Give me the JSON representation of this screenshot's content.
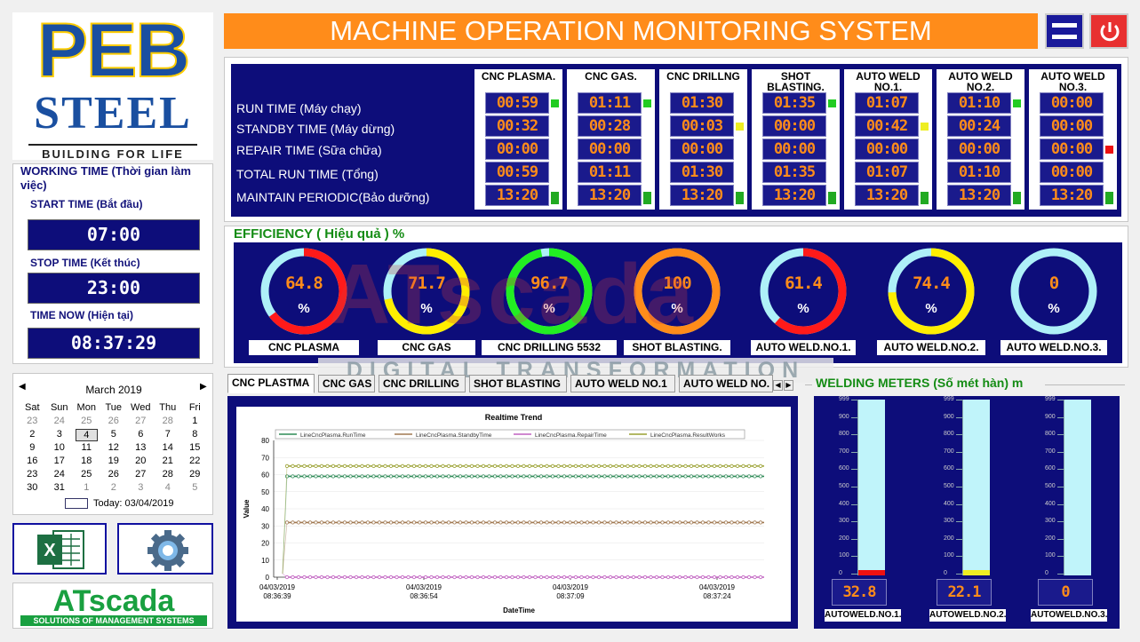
{
  "header": {
    "title": "MACHINE OPERATION MONITORING SYSTEM"
  },
  "logo": {
    "line1": "PEB",
    "line2": "STEEL",
    "tagline": "BUILDING FOR LIFE"
  },
  "working_time": {
    "title": "WORKING TIME (Thời gian làm việc)",
    "start_label": "START TIME (Bắt đầu)",
    "start_value": "07:00",
    "stop_label": "STOP TIME (Kết thúc)",
    "stop_value": "23:00",
    "now_label": "TIME NOW (Hiện tại)",
    "now_value": "08:37:29"
  },
  "calendar": {
    "month": "March 2019",
    "days": [
      "Sat",
      "Sun",
      "Mon",
      "Tue",
      "Wed",
      "Thu",
      "Fri"
    ],
    "weeks": [
      [
        "23",
        "24",
        "25",
        "26",
        "27",
        "28",
        "1"
      ],
      [
        "2",
        "3",
        "4",
        "5",
        "6",
        "7",
        "8"
      ],
      [
        "9",
        "10",
        "11",
        "12",
        "13",
        "14",
        "15"
      ],
      [
        "16",
        "17",
        "18",
        "19",
        "20",
        "21",
        "22"
      ],
      [
        "23",
        "24",
        "25",
        "26",
        "27",
        "28",
        "29"
      ],
      [
        "30",
        "31",
        "1",
        "2",
        "3",
        "4",
        "5"
      ]
    ],
    "today": "Today: 03/04/2019"
  },
  "icons": {
    "excel": "excel-icon",
    "settings": "gear-icon"
  },
  "atscada": {
    "logo": "ATscada",
    "tagline": "SOLUTIONS OF MANAGEMENT SYSTEMS"
  },
  "status": {
    "rows": [
      "RUN TIME (Máy chạy)",
      "STANDBY TIME (Máy dừng)",
      "REPAIR TIME (Sữa chữa)",
      "TOTAL RUN TIME (Tổng)",
      "MAINTAIN PERIODIC(Bảo dưỡng)"
    ],
    "machines": [
      {
        "name": "CNC PLASMA.",
        "values": [
          "00:59",
          "00:32",
          "00:00",
          "00:59",
          "13:20"
        ],
        "leds": [
          "#22cc22",
          "",
          "",
          "",
          "#22aa22"
        ]
      },
      {
        "name": "CNC GAS.",
        "values": [
          "01:11",
          "00:28",
          "00:00",
          "01:11",
          "13:20"
        ],
        "leds": [
          "#22cc22",
          "",
          "",
          "",
          "#22aa22"
        ]
      },
      {
        "name": "CNC DRILLNG",
        "values": [
          "01:30",
          "00:03",
          "00:00",
          "01:30",
          "13:20"
        ],
        "leds": [
          "",
          "#eeee22",
          "",
          "",
          "#22aa22"
        ]
      },
      {
        "name": "SHOT BLASTING.",
        "values": [
          "01:35",
          "00:00",
          "00:00",
          "01:35",
          "13:20"
        ],
        "leds": [
          "#22cc22",
          "",
          "",
          "",
          "#22aa22"
        ]
      },
      {
        "name": "AUTO WELD NO.1.",
        "values": [
          "01:07",
          "00:42",
          "00:00",
          "01:07",
          "13:20"
        ],
        "leds": [
          "",
          "#eeee22",
          "",
          "",
          "#22aa22"
        ]
      },
      {
        "name": "AUTO WELD NO.2.",
        "values": [
          "01:10",
          "00:24",
          "00:00",
          "01:10",
          "13:20"
        ],
        "leds": [
          "#22cc22",
          "",
          "",
          "",
          "#22aa22"
        ]
      },
      {
        "name": "AUTO WELD NO.3.",
        "values": [
          "00:00",
          "00:00",
          "00:00",
          "00:00",
          "13:20"
        ],
        "leds": [
          "",
          "",
          "#ee1111",
          "",
          "#22aa22"
        ]
      }
    ]
  },
  "efficiency": {
    "title": "EFFICIENCY ( Hiệu quả ) %",
    "unit": "%",
    "gauges": [
      {
        "label": "CNC PLASMA",
        "value": "64.8",
        "color": "#ff1a1a",
        "fraction": 0.648
      },
      {
        "label": "CNC GAS",
        "value": "71.7",
        "color": "#ffee00",
        "fraction": 0.717
      },
      {
        "label": "CNC DRILLING 5532",
        "value": "96.7",
        "color": "#22ee22",
        "fraction": 0.967
      },
      {
        "label": "SHOT BLASTING.",
        "value": "100",
        "color": "#ff8c1a",
        "fraction": 1.0
      },
      {
        "label": "AUTO WELD.NO.1.",
        "value": "61.4",
        "color": "#ff1a1a",
        "fraction": 0.614
      },
      {
        "label": "AUTO WELD.NO.2.",
        "value": "74.4",
        "color": "#ffee00",
        "fraction": 0.744
      },
      {
        "label": "AUTO WELD.NO.3.",
        "value": "0",
        "color": "#ffee00",
        "fraction": 0.0
      }
    ]
  },
  "watermark": {
    "brand": "ATscada",
    "sub": "DIGITAL TRANSFORMATION"
  },
  "tabs": [
    "CNC PLASTMA",
    "CNC GAS",
    "CNC DRILLING",
    "SHOT BLASTING",
    "AUTO WELD NO.1",
    "AUTO WELD NO."
  ],
  "chart_data": {
    "type": "line",
    "title": "Realtime Trend",
    "xlabel": "DateTime",
    "ylabel": "Value",
    "ylim": [
      0,
      80
    ],
    "yticks": [
      "0",
      "10",
      "20",
      "30",
      "40",
      "50",
      "60",
      "70",
      "80"
    ],
    "xticks": [
      [
        "04/03/2019",
        "08:36:39"
      ],
      [
        "04/03/2019",
        "08:36:54"
      ],
      [
        "04/03/2019",
        "08:37:09"
      ],
      [
        "04/03/2019",
        "08:37:24"
      ]
    ],
    "legend_placement": "top",
    "series": [
      {
        "name": "LineCncPlasma.RunTime",
        "color": "#2e8b57",
        "values": [
          59,
          59,
          59,
          59,
          59,
          59
        ]
      },
      {
        "name": "LineCncPlasma.StandbyTime",
        "color": "#a07850",
        "values": [
          32,
          32,
          32,
          32,
          32,
          32
        ]
      },
      {
        "name": "LineCncPlasma.RepairTime",
        "color": "#c060c0",
        "values": [
          0,
          0,
          0,
          0,
          0,
          0
        ]
      },
      {
        "name": "LineCncPlasma.ResultWorks",
        "color": "#9aa030",
        "values": [
          65,
          65,
          65,
          65,
          65,
          65
        ]
      }
    ]
  },
  "welding": {
    "title": "WELDING METERS (Số mét hàn) m",
    "ticks": [
      "999",
      "900",
      "800",
      "700",
      "600",
      "500",
      "400",
      "300",
      "200",
      "100",
      "0"
    ],
    "meters": [
      {
        "label": "AUTOWELD.NO.1.",
        "value": "32.8",
        "fill": 0.0328,
        "color": "#ee1111"
      },
      {
        "label": "AUTOWELD.NO.2.",
        "value": "22.1",
        "fill": 0.0221,
        "color": "#eeee22"
      },
      {
        "label": "AUTOWELD.NO.3.",
        "value": "0",
        "fill": 0,
        "color": "#eeee22"
      }
    ]
  }
}
